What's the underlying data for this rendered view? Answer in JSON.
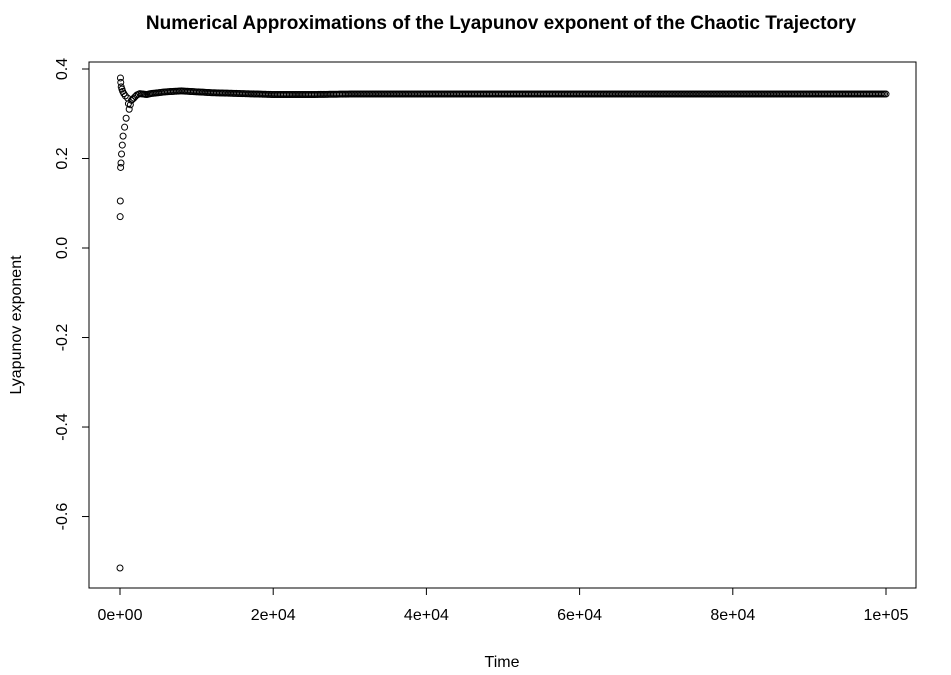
{
  "chart_data": {
    "type": "scatter",
    "title": "Numerical Approximations of the Lyapunov exponent of the Chaotic Trajectory",
    "xlabel": "Time",
    "ylabel": "Lyapunov exponent",
    "xlim": [
      0,
      100000
    ],
    "ylim": [
      -0.72,
      0.4
    ],
    "x_ticks": [
      {
        "value": 0,
        "label": "0e+00"
      },
      {
        "value": 20000,
        "label": "2e+04"
      },
      {
        "value": 40000,
        "label": "4e+04"
      },
      {
        "value": 60000,
        "label": "6e+04"
      },
      {
        "value": 80000,
        "label": "8e+04"
      },
      {
        "value": 100000,
        "label": "1e+05"
      }
    ],
    "y_ticks": [
      {
        "value": 0.4,
        "label": "0.4"
      },
      {
        "value": 0.2,
        "label": "0.2"
      },
      {
        "value": 0.0,
        "label": "0.0"
      },
      {
        "value": -0.2,
        "label": "-0.2"
      },
      {
        "value": -0.4,
        "label": "-0.4"
      },
      {
        "value": -0.6,
        "label": "-0.6"
      }
    ],
    "grid": false,
    "marker": "open-circle",
    "series": [
      {
        "x": [
          0,
          20,
          40,
          60,
          80,
          100,
          130,
          160,
          200,
          250,
          300,
          350,
          400,
          500,
          600,
          700,
          800,
          1000,
          1200,
          1500,
          1800,
          2200,
          2600,
          3000,
          3500,
          4000,
          5000,
          6000,
          7000,
          8000,
          9000,
          10000,
          12000,
          14000,
          16000,
          18000,
          20000,
          25000,
          30000,
          40000,
          50000,
          60000,
          70000,
          80000,
          90000,
          100000
        ],
        "y": [
          -0.715,
          0.07,
          0.105,
          0.38,
          0.18,
          0.37,
          0.19,
          0.36,
          0.21,
          0.355,
          0.23,
          0.35,
          0.25,
          0.345,
          0.27,
          0.34,
          0.29,
          0.335,
          0.31,
          0.33,
          0.335,
          0.342,
          0.345,
          0.344,
          0.343,
          0.345,
          0.347,
          0.349,
          0.35,
          0.351,
          0.35,
          0.349,
          0.347,
          0.346,
          0.345,
          0.344,
          0.343,
          0.343,
          0.344,
          0.344,
          0.344,
          0.344,
          0.344,
          0.344,
          0.344,
          0.344
        ]
      }
    ]
  }
}
